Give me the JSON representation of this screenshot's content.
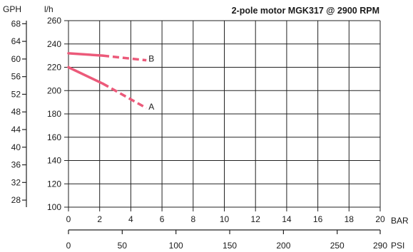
{
  "chart_data": {
    "type": "line",
    "title": "2-pole motor MGK317 @ 2900 RPM",
    "x_axis": {
      "label": "BAR",
      "range": [
        0,
        20
      ],
      "ticks": [
        0,
        2,
        4,
        6,
        8,
        10,
        12,
        14,
        16,
        18,
        20
      ]
    },
    "x2_axis": {
      "label": "PSI",
      "range": [
        0,
        290
      ],
      "ticks": [
        0,
        50,
        100,
        150,
        200,
        250,
        290
      ]
    },
    "y_axis": {
      "label": "l/h",
      "range": [
        100,
        260
      ],
      "ticks": [
        100,
        120,
        140,
        160,
        180,
        200,
        220,
        240,
        260
      ]
    },
    "y2_axis": {
      "label": "GPH",
      "range": [
        26.4,
        68.7
      ],
      "ticks": [
        28,
        32,
        36,
        40,
        44,
        48,
        52,
        56,
        60,
        64,
        68
      ]
    },
    "grid": true,
    "series": [
      {
        "name": "A",
        "color": "#ec5a7a",
        "points": [
          [
            0,
            220
          ],
          [
            2.2,
            206
          ],
          [
            5,
            185
          ]
        ],
        "solid_until_x": 2.2
      },
      {
        "name": "B",
        "color": "#ec5a7a",
        "points": [
          [
            0,
            232
          ],
          [
            2.2,
            230
          ],
          [
            5,
            226
          ]
        ],
        "solid_until_x": 2.2
      }
    ]
  }
}
